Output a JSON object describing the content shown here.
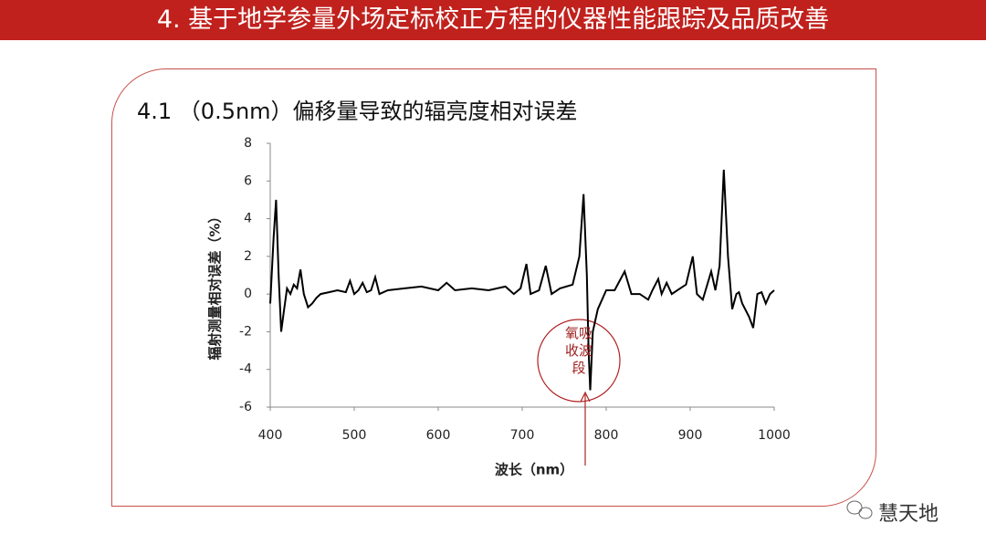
{
  "header": {
    "title": "4. 基于地学参量外场定标校正方程的仪器性能跟踪及品质改善"
  },
  "watermark": "慧天地",
  "chart_data": {
    "type": "line",
    "title": "4.1 （0.5nm）偏移量导致的辐亮度相对误差",
    "x_label": "波长（nm）",
    "y_label": "辐射测量相对误差（%）",
    "annotation": "氧吸收波段",
    "color": "#000000",
    "x": [
      400,
      404,
      407,
      410,
      413,
      416,
      420,
      424,
      428,
      432,
      436,
      440,
      445,
      450,
      455,
      460,
      470,
      480,
      490,
      495,
      500,
      505,
      510,
      515,
      520,
      525,
      530,
      540,
      560,
      580,
      600,
      610,
      620,
      640,
      660,
      680,
      690,
      698,
      705,
      710,
      720,
      728,
      735,
      745,
      760,
      768,
      773,
      777,
      779,
      781,
      784,
      790,
      800,
      810,
      822,
      830,
      840,
      850,
      855,
      862,
      866,
      872,
      878,
      888,
      895,
      903,
      908,
      915,
      925,
      930,
      935,
      940,
      945,
      950,
      955,
      958,
      962,
      970,
      975,
      980,
      985,
      990,
      995,
      1000
    ],
    "values": [
      -0.5,
      3,
      5,
      1,
      -2,
      -1,
      0.3,
      0,
      0.5,
      0.3,
      1.3,
      0,
      -0.7,
      -0.5,
      -0.2,
      0,
      0.1,
      0.2,
      0.1,
      0.7,
      0,
      0.2,
      0.6,
      0.1,
      0.2,
      0.9,
      0,
      0.2,
      0.3,
      0.4,
      0.2,
      0.6,
      0.2,
      0.3,
      0.2,
      0.4,
      0,
      0.3,
      1.6,
      0,
      0.2,
      1.5,
      0,
      0.3,
      0.5,
      2,
      5.3,
      1,
      -3,
      -5.1,
      -2,
      -0.8,
      0.2,
      0.2,
      1.2,
      0,
      0,
      -0.3,
      0.2,
      0.8,
      0,
      0.6,
      0,
      0.3,
      0.5,
      2,
      0,
      -0.3,
      1.2,
      0.2,
      1.5,
      6.6,
      2,
      -0.8,
      0,
      0.1,
      -0.5,
      -1.2,
      -1.8,
      0,
      0.1,
      -0.5,
      0,
      0.2
    ],
    "annotation_x": 775,
    "xlim": [
      400,
      1000
    ],
    "xticks": [
      400,
      500,
      600,
      700,
      800,
      900,
      1000
    ],
    "ylim": [
      -6,
      8
    ],
    "yticks": [
      -6,
      -4,
      -2,
      0,
      2,
      4,
      6,
      8
    ]
  }
}
